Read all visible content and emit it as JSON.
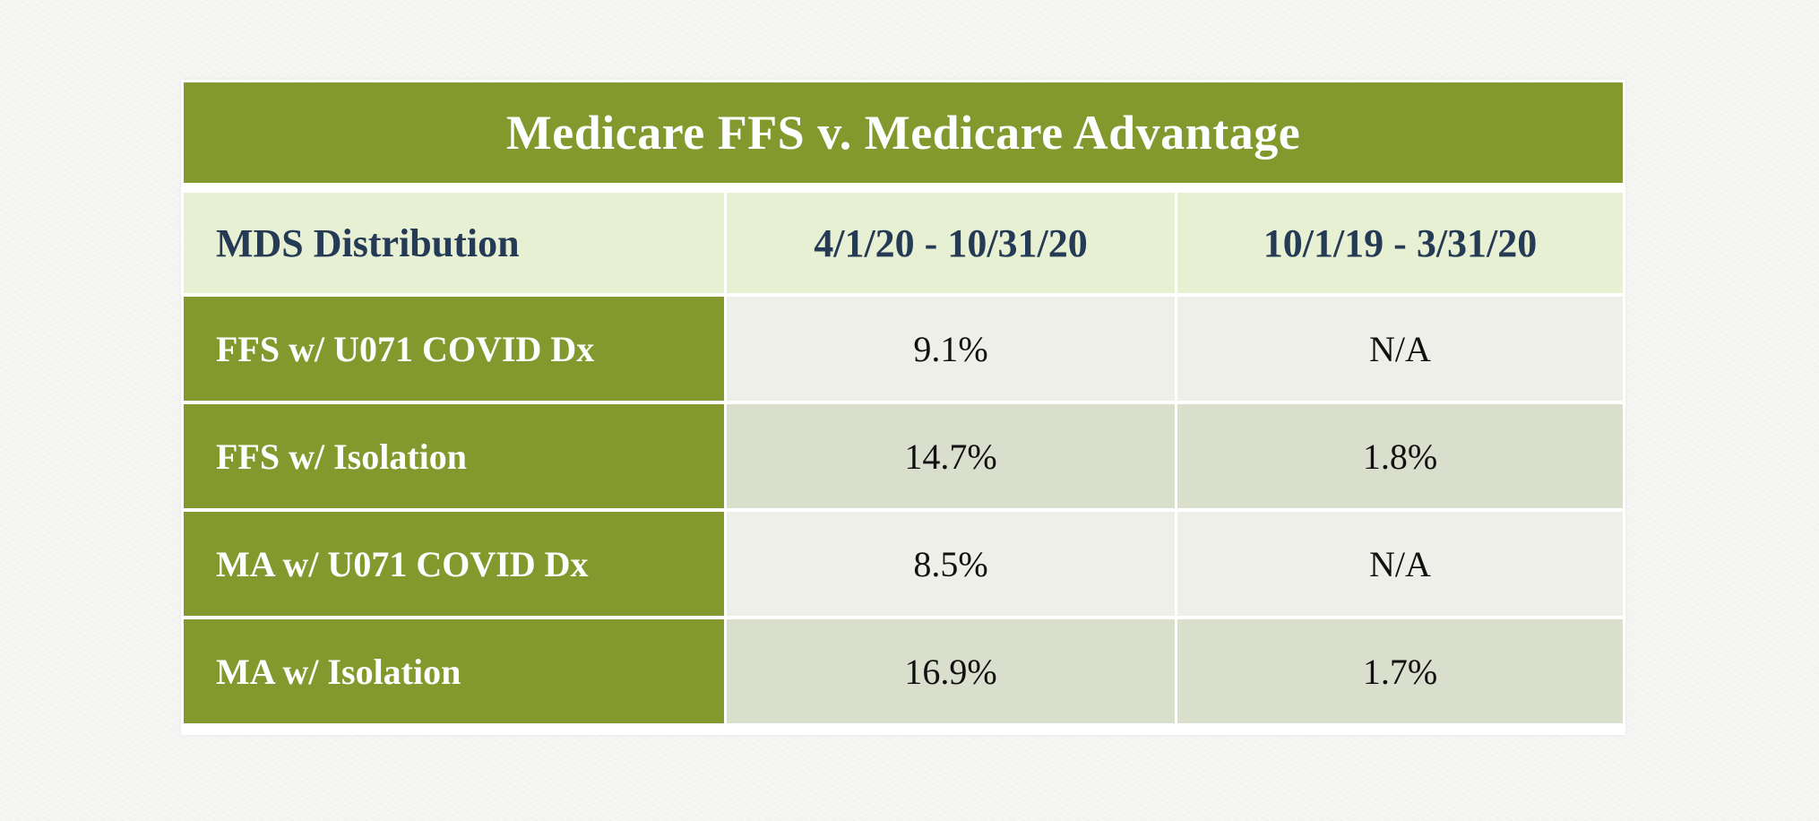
{
  "table": {
    "title": "Medicare FFS v. Medicare Advantage",
    "header": [
      "MDS Distribution",
      "4/1/20 - 10/31/20",
      "10/1/19 - 3/31/20"
    ],
    "rows": [
      {
        "label": "FFS w/ U071 COVID Dx",
        "values": [
          "9.1%",
          "N/A"
        ]
      },
      {
        "label": "FFS w/ Isolation",
        "values": [
          "14.7%",
          "1.8%"
        ]
      },
      {
        "label": "MA w/ U071 COVID Dx",
        "values": [
          "8.5%",
          "N/A"
        ]
      },
      {
        "label": "MA w/ Isolation",
        "values": [
          "16.9%",
          "1.7%"
        ]
      }
    ]
  }
}
